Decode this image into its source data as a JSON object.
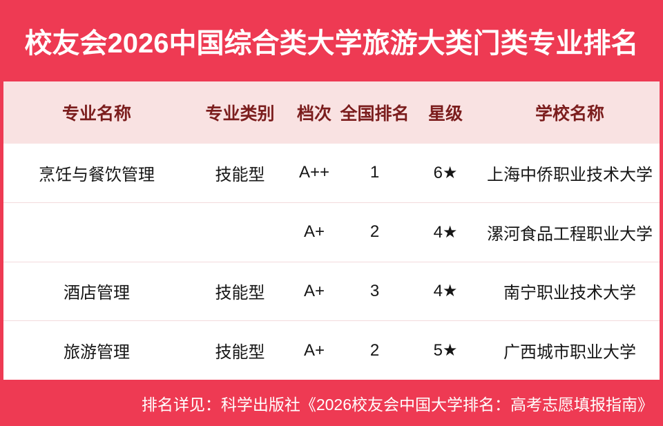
{
  "title": "校友会2026中国综合类大学旅游大类门类专业排名",
  "colors": {
    "background_red": "#ee3a53",
    "header_pink": "#f9e2e2",
    "header_text": "#7b1d1d",
    "body_text": "#161616",
    "divider": "#f3dadc",
    "card_white": "#ffffff"
  },
  "table": {
    "columns": [
      "专业名称",
      "专业类别",
      "档次",
      "全国排名",
      "星级",
      "学校名称"
    ],
    "rows": [
      {
        "major": "烹饪与餐饮管理",
        "category": "技能型",
        "grade": "A++",
        "rank": "1",
        "stars": "6★",
        "school": "上海中侨职业技术大学"
      },
      {
        "major": "",
        "category": "",
        "grade": "A+",
        "rank": "2",
        "stars": "4★",
        "school": "漯河食品工程职业大学"
      },
      {
        "major": "酒店管理",
        "category": "技能型",
        "grade": "A+",
        "rank": "3",
        "stars": "4★",
        "school": "南宁职业技术大学"
      },
      {
        "major": "旅游管理",
        "category": "技能型",
        "grade": "A+",
        "rank": "2",
        "stars": "5★",
        "school": "广西城市职业大学"
      }
    ]
  },
  "footer": {
    "note": "排名详见：科学出版社《2026校友会中国大学排名：高考志愿填报指南》"
  }
}
